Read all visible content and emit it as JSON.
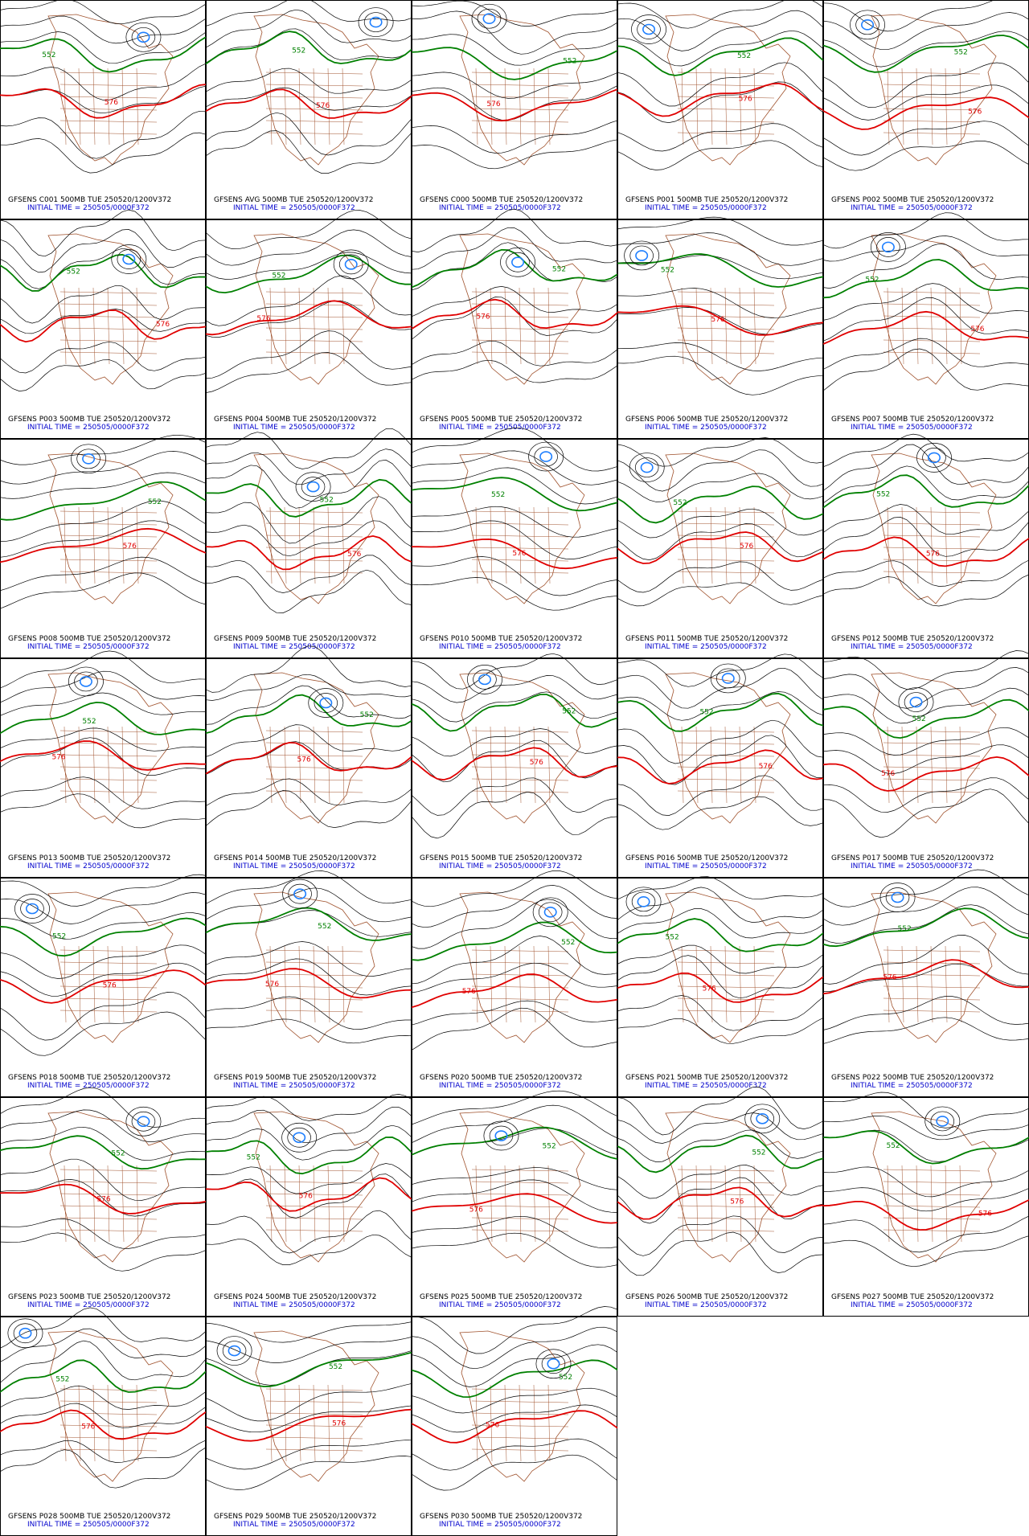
{
  "panels": [
    {
      "label": "GFSENS C001 500MB TUE 250520/1200V372",
      "initial": "INITIAL TIME = 250505/0000F372",
      "contours": [
        "552",
        "576"
      ]
    },
    {
      "label": "GFSENS AVG 500MB TUE 250520/1200V372",
      "initial": "INITIAL TIME = 250505/0000F372",
      "contours": [
        "552",
        "576"
      ]
    },
    {
      "label": "GFSENS C000 500MB TUE 250520/1200V372",
      "initial": "INITIAL TIME = 250505/0000F372",
      "contours": [
        "552",
        "576"
      ]
    },
    {
      "label": "GFSENS P001 500MB TUE 250520/1200V372",
      "initial": "INITIAL TIME = 250505/0000F372",
      "contours": [
        "552",
        "576"
      ]
    },
    {
      "label": "GFSENS P002 500MB TUE 250520/1200V372",
      "initial": "INITIAL TIME = 250505/0000F372",
      "contours": [
        "552",
        "576"
      ]
    },
    {
      "label": "GFSENS P003 500MB TUE 250520/1200V372",
      "initial": "INITIAL TIME = 250505/0000F372",
      "contours": [
        "552",
        "576"
      ]
    },
    {
      "label": "GFSENS P004 500MB TUE 250520/1200V372",
      "initial": "INITIAL TIME = 250505/0000F372",
      "contours": [
        "552",
        "576"
      ]
    },
    {
      "label": "GFSENS P005 500MB TUE 250520/1200V372",
      "initial": "INITIAL TIME = 250505/0000F372",
      "contours": [
        "552",
        "576"
      ]
    },
    {
      "label": "GFSENS P006 500MB TUE 250520/1200V372",
      "initial": "INITIAL TIME = 250505/0000F372",
      "contours": [
        "552",
        "576"
      ]
    },
    {
      "label": "GFSENS P007 500MB TUE 250520/1200V372",
      "initial": "INITIAL TIME = 250505/0000F372",
      "contours": [
        "552",
        "576"
      ]
    },
    {
      "label": "GFSENS P008 500MB TUE 250520/1200V372",
      "initial": "INITIAL TIME = 250505/0000F372",
      "contours": [
        "552",
        "576"
      ]
    },
    {
      "label": "GFSENS P009 500MB TUE 250520/1200V372",
      "initial": "INITIAL TIME = 250505/0000F372",
      "contours": [
        "552",
        "576"
      ]
    },
    {
      "label": "GFSENS P010 500MB TUE 250520/1200V372",
      "initial": "INITIAL TIME = 250505/0000F372",
      "contours": [
        "552",
        "576"
      ]
    },
    {
      "label": "GFSENS P011 500MB TUE 250520/1200V372",
      "initial": "INITIAL TIME = 250505/0000F372",
      "contours": [
        "552",
        "576"
      ]
    },
    {
      "label": "GFSENS P012 500MB TUE 250520/1200V372",
      "initial": "INITIAL TIME = 250505/0000F372",
      "contours": [
        "552",
        "576"
      ]
    },
    {
      "label": "GFSENS P013 500MB TUE 250520/1200V372",
      "initial": "INITIAL TIME = 250505/0000F372",
      "contours": [
        "552",
        "576"
      ]
    },
    {
      "label": "GFSENS P014 500MB TUE 250520/1200V372",
      "initial": "INITIAL TIME = 250505/0000F372",
      "contours": [
        "552",
        "576"
      ]
    },
    {
      "label": "GFSENS P015 500MB TUE 250520/1200V372",
      "initial": "INITIAL TIME = 250505/0000F372",
      "contours": [
        "552",
        "576"
      ]
    },
    {
      "label": "GFSENS P016 500MB TUE 250520/1200V372",
      "initial": "INITIAL TIME = 250505/0000F372",
      "contours": [
        "552",
        "576"
      ]
    },
    {
      "label": "GFSENS P017 500MB TUE 250520/1200V372",
      "initial": "INITIAL TIME = 250505/0000F372",
      "contours": [
        "552",
        "576"
      ]
    },
    {
      "label": "GFSENS P018 500MB TUE 250520/1200V372",
      "initial": "INITIAL TIME = 250505/0000F372",
      "contours": [
        "552",
        "576"
      ]
    },
    {
      "label": "GFSENS P019 500MB TUE 250520/1200V372",
      "initial": "INITIAL TIME = 250505/0000F372",
      "contours": [
        "552",
        "576"
      ]
    },
    {
      "label": "GFSENS P020 500MB TUE 250520/1200V372",
      "initial": "INITIAL TIME = 250505/0000F372",
      "contours": [
        "552",
        "576"
      ]
    },
    {
      "label": "GFSENS P021 500MB TUE 250520/1200V372",
      "initial": "INITIAL TIME = 250505/0000F372",
      "contours": [
        "552",
        "576"
      ]
    },
    {
      "label": "GFSENS P022 500MB TUE 250520/1200V372",
      "initial": "INITIAL TIME = 250505/0000F372",
      "contours": [
        "552",
        "576"
      ]
    },
    {
      "label": "GFSENS P023 500MB TUE 250520/1200V372",
      "initial": "INITIAL TIME = 250505/0000F372",
      "contours": [
        "552",
        "576"
      ]
    },
    {
      "label": "GFSENS P024 500MB TUE 250520/1200V372",
      "initial": "INITIAL TIME = 250505/0000F372",
      "contours": [
        "552",
        "576"
      ]
    },
    {
      "label": "GFSENS P025 500MB TUE 250520/1200V372",
      "initial": "INITIAL TIME = 250505/0000F372",
      "contours": [
        "552",
        "576"
      ]
    },
    {
      "label": "GFSENS P026 500MB TUE 250520/1200V372",
      "initial": "INITIAL TIME = 250505/0000F372",
      "contours": [
        "552",
        "576"
      ]
    },
    {
      "label": "GFSENS P027 500MB TUE 250520/1200V372",
      "initial": "INITIAL TIME = 250505/0000F372",
      "contours": [
        "552",
        "576"
      ]
    },
    {
      "label": "GFSENS P028 500MB TUE 250520/1200V372",
      "initial": "INITIAL TIME = 250505/0000F372",
      "contours": [
        "552",
        "576"
      ]
    },
    {
      "label": "GFSENS P029 500MB TUE 250520/1200V372",
      "initial": "INITIAL TIME = 250505/0000F372",
      "contours": [
        "552",
        "576"
      ]
    },
    {
      "label": "GFSENS P030 500MB TUE 250520/1200V372",
      "initial": "INITIAL TIME = 250505/0000F372",
      "contours": [
        "552",
        "576"
      ]
    }
  ]
}
